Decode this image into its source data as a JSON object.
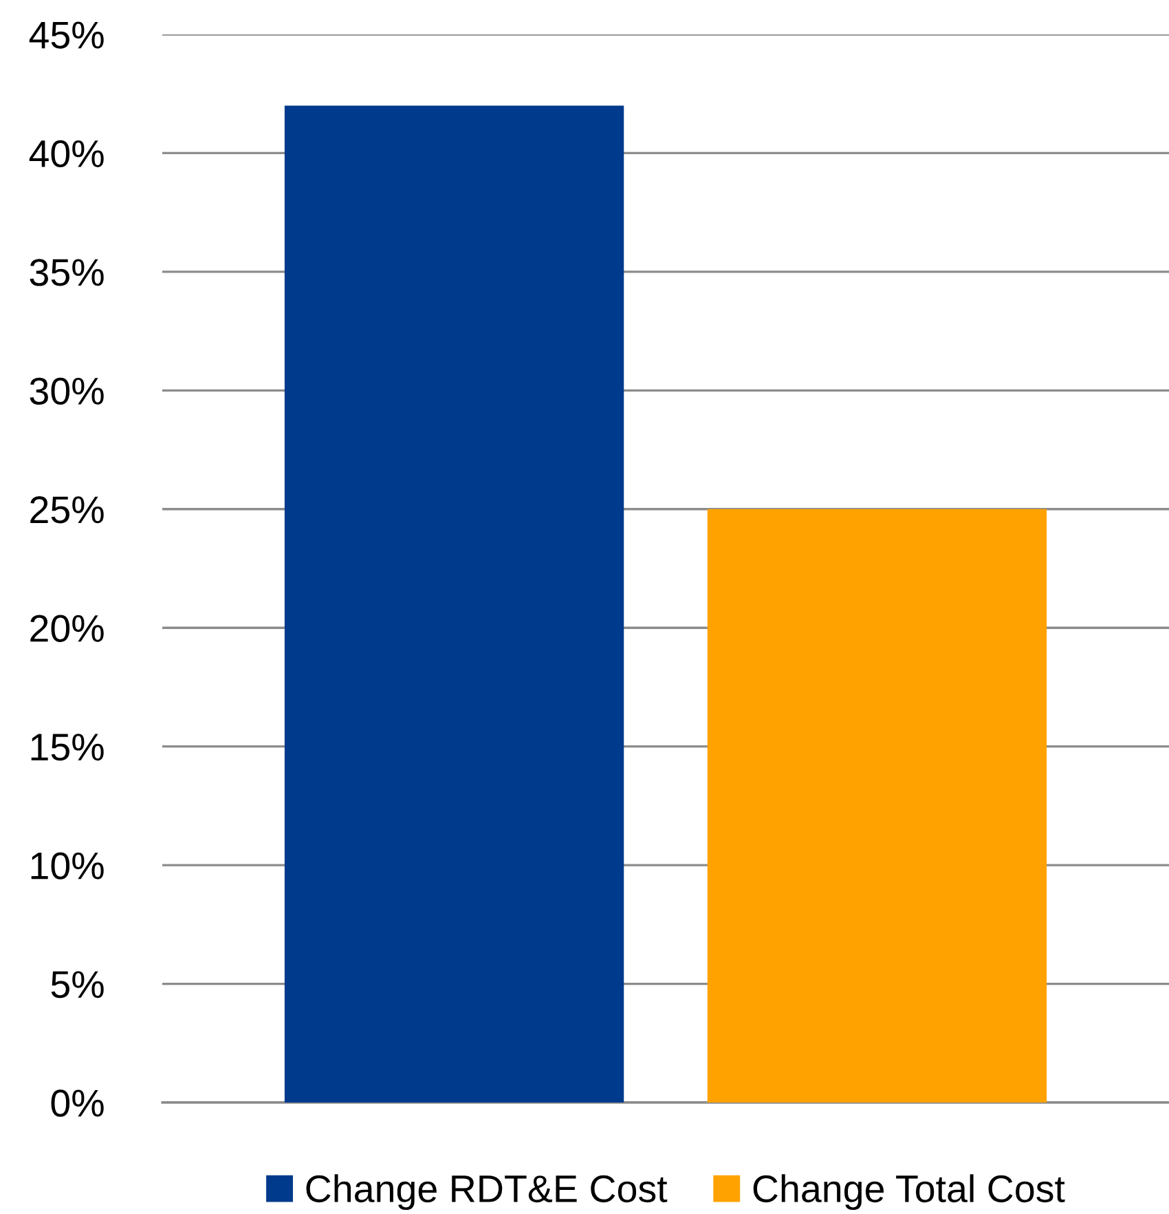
{
  "chart_data": {
    "type": "bar",
    "categories": [
      null
    ],
    "series": [
      {
        "name": "Change RDT&E Cost",
        "color": "#003a8c",
        "values": [
          42
        ]
      },
      {
        "name": "Change Total Cost",
        "color": "#ffa200",
        "values": [
          25
        ]
      }
    ],
    "ylim": [
      0,
      45
    ],
    "yticks": [
      {
        "value": 0,
        "label": "0%"
      },
      {
        "value": 5,
        "label": "5%"
      },
      {
        "value": 10,
        "label": "10%"
      },
      {
        "value": 15,
        "label": "15%"
      },
      {
        "value": 20,
        "label": "20%"
      },
      {
        "value": 25,
        "label": "25%"
      },
      {
        "value": 30,
        "label": "30%"
      },
      {
        "value": 35,
        "label": "35%"
      },
      {
        "value": 40,
        "label": "40%"
      },
      {
        "value": 45,
        "label": "45%"
      }
    ],
    "grid": "y",
    "legend": "bottom",
    "tick_labels": "y"
  }
}
